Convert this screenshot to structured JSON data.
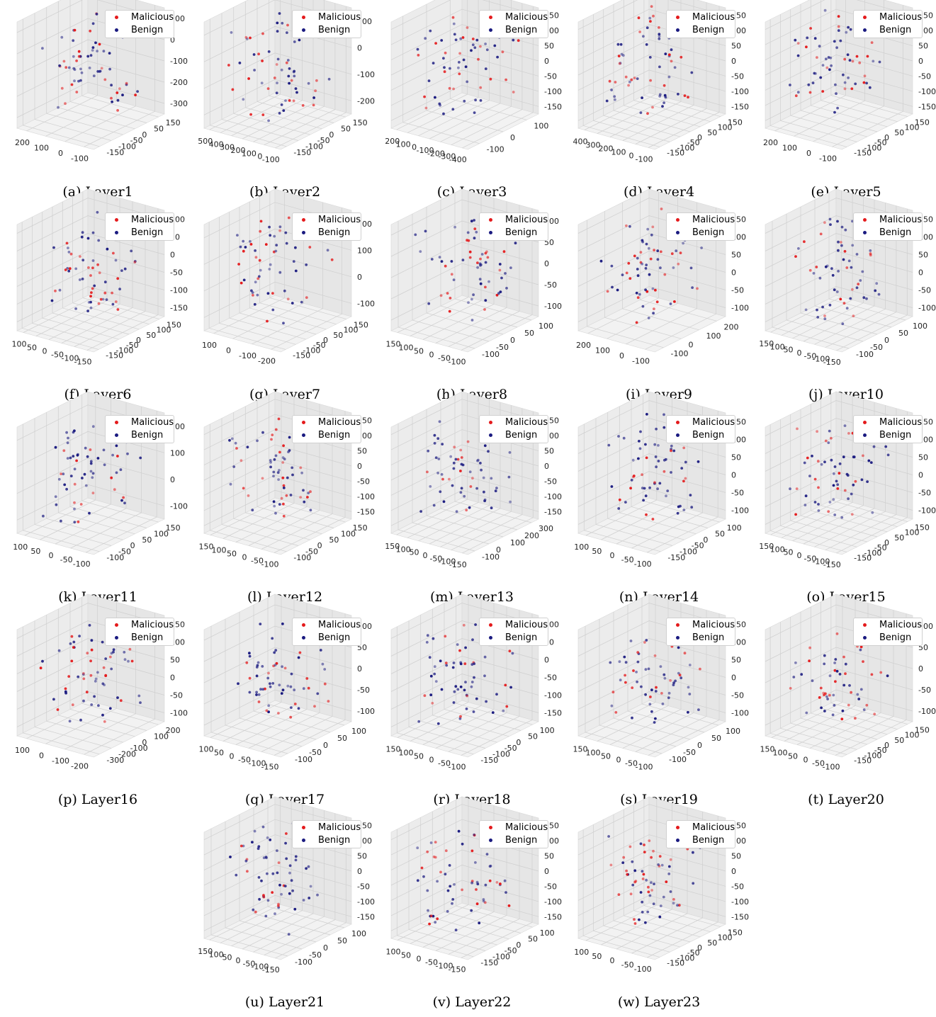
{
  "legend": {
    "malicious_label": "Malicious",
    "benign_label": "Benign"
  },
  "colors": {
    "malicious": "#e41a1c",
    "benign": "#1a1a80",
    "pane": "#eeeeee",
    "grid": "#cfcfcf"
  },
  "chart_data": [
    {
      "type": "scatter",
      "caption": "(a) Layer1",
      "xticks": [
        "-100",
        "0",
        "100",
        "200"
      ],
      "yticks": [
        "-150",
        "-100",
        "-50",
        "0",
        "50",
        "150"
      ],
      "zticks": [
        "100",
        "0",
        "-100",
        "-200",
        "-300"
      ]
    },
    {
      "type": "scatter",
      "caption": "(b) Layer2",
      "xticks": [
        "-100",
        "0",
        "100",
        "200",
        "300",
        "400",
        "500"
      ],
      "yticks": [
        "-150",
        "-100",
        "-50",
        "0",
        "50",
        "150"
      ],
      "zticks": [
        "100",
        "0",
        "-100",
        "-200"
      ]
    },
    {
      "type": "scatter",
      "caption": "(c) Layer3",
      "xticks": [
        "-400",
        "-300",
        "-200",
        "-100",
        "0",
        "100",
        "200"
      ],
      "yticks": [
        "-100",
        "0",
        "100"
      ],
      "zticks": [
        "150",
        "100",
        "50",
        "0",
        "-50",
        "-100",
        "-150"
      ]
    },
    {
      "type": "scatter",
      "caption": "(d) Layer4",
      "xticks": [
        "-100",
        "0",
        "100",
        "200",
        "300",
        "400"
      ],
      "yticks": [
        "-150",
        "-100",
        "-50",
        "0",
        "50",
        "100",
        "150"
      ],
      "zticks": [
        "150",
        "100",
        "50",
        "0",
        "-50",
        "-100",
        "-150"
      ]
    },
    {
      "type": "scatter",
      "caption": "(e) Layer5",
      "xticks": [
        "-100",
        "0",
        "100",
        "200"
      ],
      "yticks": [
        "-150",
        "-100",
        "-50",
        "0",
        "50",
        "100",
        "150"
      ],
      "zticks": [
        "150",
        "100",
        "50",
        "0",
        "-50",
        "-100",
        "-150"
      ]
    },
    {
      "type": "scatter",
      "caption": "(f) Layer6",
      "xticks": [
        "-150",
        "-100",
        "-50",
        "0",
        "50",
        "100"
      ],
      "yticks": [
        "-150",
        "-100",
        "-50",
        "0",
        "50",
        "100",
        "150"
      ],
      "zticks": [
        "100",
        "50",
        "0",
        "-50",
        "-100",
        "-150"
      ]
    },
    {
      "type": "scatter",
      "caption": "(g) Layer7",
      "xticks": [
        "-200",
        "-100",
        "0",
        "100"
      ],
      "yticks": [
        "-150",
        "-100",
        "-50",
        "0",
        "50",
        "100",
        "150"
      ],
      "zticks": [
        "200",
        "100",
        "0",
        "-100"
      ]
    },
    {
      "type": "scatter",
      "caption": "(h) Layer8",
      "xticks": [
        "-100",
        "-50",
        "0",
        "50",
        "100",
        "150"
      ],
      "yticks": [
        "-100",
        "-50",
        "0",
        "50",
        "100"
      ],
      "zticks": [
        "100",
        "50",
        "0",
        "-50",
        "-100"
      ]
    },
    {
      "type": "scatter",
      "caption": "(i) Layer9",
      "xticks": [
        "-100",
        "0",
        "100",
        "200"
      ],
      "yticks": [
        "-100",
        "0",
        "100",
        "200"
      ],
      "zticks": [
        "150",
        "100",
        "50",
        "0",
        "-50",
        "-100"
      ]
    },
    {
      "type": "scatter",
      "caption": "(j) Layer10",
      "xticks": [
        "-150",
        "-100",
        "-50",
        "0",
        "50",
        "100",
        "150"
      ],
      "yticks": [
        "-100",
        "-50",
        "0",
        "50",
        "100"
      ],
      "zticks": [
        "150",
        "100",
        "50",
        "0",
        "-50",
        "-100"
      ]
    },
    {
      "type": "scatter",
      "caption": "(k) Layer11",
      "xticks": [
        "-100",
        "-50",
        "0",
        "50",
        "100"
      ],
      "yticks": [
        "-100",
        "-50",
        "0",
        "50",
        "100",
        "150"
      ],
      "zticks": [
        "200",
        "100",
        "0",
        "-100"
      ]
    },
    {
      "type": "scatter",
      "caption": "(l) Layer12",
      "xticks": [
        "-100",
        "-50",
        "0",
        "50",
        "100",
        "150"
      ],
      "yticks": [
        "-100",
        "-50",
        "0",
        "50",
        "100",
        "150"
      ],
      "zticks": [
        "150",
        "100",
        "50",
        "0",
        "-50",
        "-100",
        "-150"
      ]
    },
    {
      "type": "scatter",
      "caption": "(m) Layer13",
      "xticks": [
        "-150",
        "-100",
        "-50",
        "0",
        "50",
        "100",
        "150"
      ],
      "yticks": [
        "-100",
        "0",
        "100",
        "200",
        "300"
      ],
      "zticks": [
        "150",
        "100",
        "50",
        "0",
        "-50",
        "-100",
        "-150"
      ]
    },
    {
      "type": "scatter",
      "caption": "(n) Layer14",
      "xticks": [
        "-100",
        "-50",
        "0",
        "50",
        "100"
      ],
      "yticks": [
        "-150",
        "-100",
        "-50",
        "0",
        "50",
        "100"
      ],
      "zticks": [
        "150",
        "100",
        "50",
        "0",
        "-50",
        "-100"
      ]
    },
    {
      "type": "scatter",
      "caption": "(o) Layer15",
      "xticks": [
        "-150",
        "-100",
        "-50",
        "0",
        "50",
        "100",
        "150"
      ],
      "yticks": [
        "-150",
        "-100",
        "-50",
        "0",
        "50",
        "100",
        "150"
      ],
      "zticks": [
        "150",
        "100",
        "50",
        "0",
        "-50",
        "-100"
      ]
    },
    {
      "type": "scatter",
      "caption": "(p) Layer16",
      "xticks": [
        "-200",
        "-100",
        "0",
        "100"
      ],
      "yticks": [
        "-300",
        "-200",
        "-100",
        "0",
        "100",
        "200"
      ],
      "zticks": [
        "150",
        "100",
        "50",
        "0",
        "-50",
        "-100"
      ]
    },
    {
      "type": "scatter",
      "caption": "(q) Layer17",
      "xticks": [
        "-150",
        "-100",
        "-50",
        "0",
        "50",
        "100"
      ],
      "yticks": [
        "-100",
        "-50",
        "0",
        "50",
        "100"
      ],
      "zticks": [
        "100",
        "50",
        "0",
        "-50",
        "-100"
      ]
    },
    {
      "type": "scatter",
      "caption": "(r) Layer18",
      "xticks": [
        "-100",
        "-50",
        "0",
        "50",
        "100",
        "150"
      ],
      "yticks": [
        "-150",
        "-100",
        "-50",
        "0",
        "50",
        "100"
      ],
      "zticks": [
        "100",
        "50",
        "0",
        "-50",
        "-100",
        "-150"
      ]
    },
    {
      "type": "scatter",
      "caption": "(s) Layer19",
      "xticks": [
        "-100",
        "-50",
        "0",
        "50",
        "100",
        "150"
      ],
      "yticks": [
        "-100",
        "-50",
        "0",
        "50",
        "100"
      ],
      "zticks": [
        "150",
        "100",
        "50",
        "0",
        "-50",
        "-100"
      ]
    },
    {
      "type": "scatter",
      "caption": "(t) Layer20",
      "xticks": [
        "-100",
        "-50",
        "0",
        "50",
        "100",
        "150"
      ],
      "yticks": [
        "-150",
        "-100",
        "-50",
        "0",
        "50",
        "100",
        "150"
      ],
      "zticks": [
        "100",
        "50",
        "0",
        "-50",
        "-100"
      ]
    },
    {
      "type": "scatter",
      "caption": "(u) Layer21",
      "xticks": [
        "-150",
        "-100",
        "-50",
        "0",
        "50",
        "100",
        "150"
      ],
      "yticks": [
        "-100",
        "-50",
        "0",
        "50",
        "100"
      ],
      "zticks": [
        "150",
        "100",
        "50",
        "0",
        "-50",
        "-100",
        "-150"
      ]
    },
    {
      "type": "scatter",
      "caption": "(v) Layer22",
      "xticks": [
        "-150",
        "-100",
        "-50",
        "0",
        "50",
        "100"
      ],
      "yticks": [
        "-150",
        "-100",
        "-50",
        "0",
        "50",
        "100"
      ],
      "zticks": [
        "150",
        "100",
        "50",
        "0",
        "-50",
        "-100",
        "-150"
      ]
    },
    {
      "type": "scatter",
      "caption": "(w) Layer23",
      "xticks": [
        "-100",
        "-50",
        "0",
        "50",
        "100"
      ],
      "yticks": [
        "-150",
        "-100",
        "-50",
        "0",
        "50",
        "100",
        "150"
      ],
      "zticks": [
        "150",
        "100",
        "50",
        "0",
        "-50",
        "-100",
        "-150"
      ]
    }
  ]
}
